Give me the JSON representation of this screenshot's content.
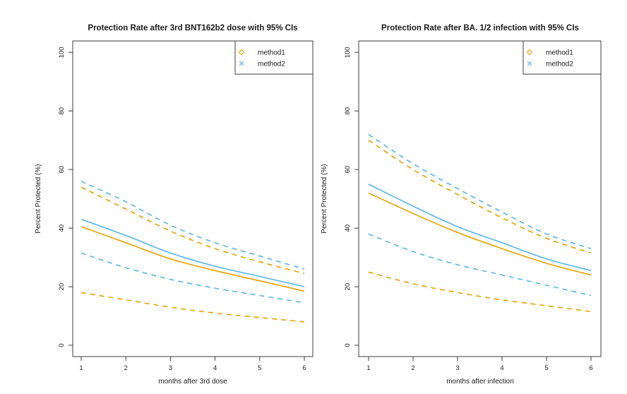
{
  "figure": {
    "background": "#ffffff",
    "accent_orange": "#E69F00",
    "accent_blue": "#56B4E9"
  },
  "chart_data": [
    {
      "type": "line",
      "title": "Protection Rate after 3rd BNT162b2 dose with 95% CIs",
      "xlabel": "months after 3rd dose",
      "ylabel": "Percent Protected (%)",
      "x": [
        1,
        2,
        3,
        4,
        5,
        6
      ],
      "xticks": [
        "1",
        "2",
        "3",
        "4",
        "5",
        "6"
      ],
      "yticks": [
        "0",
        "20",
        "40",
        "60",
        "80",
        "100"
      ],
      "ytick_values": [
        0,
        20,
        40,
        60,
        80,
        100
      ],
      "ylim": [
        0,
        100
      ],
      "grid": false,
      "legend": {
        "position": "topright",
        "entries": [
          {
            "label": "method1",
            "marker": "diamond",
            "color": "#E69F00"
          },
          {
            "label": "method2",
            "marker": "x",
            "color": "#56B4E9"
          }
        ]
      },
      "series": [
        {
          "name": "method1",
          "role": "ci-upper",
          "color": "#E69F00",
          "linestyle": "dashed",
          "values": [
            54,
            46.5,
            39,
            33,
            28.5,
            24.5
          ]
        },
        {
          "name": "method1",
          "role": "ci-lower",
          "color": "#E69F00",
          "linestyle": "dashed",
          "values": [
            18,
            15.5,
            13,
            11,
            9.5,
            8
          ]
        },
        {
          "name": "method2",
          "role": "ci-upper",
          "color": "#56B4E9",
          "linestyle": "dashed",
          "values": [
            56,
            49,
            41,
            35,
            30.5,
            26
          ]
        },
        {
          "name": "method2",
          "role": "ci-lower",
          "color": "#56B4E9",
          "linestyle": "dashed",
          "values": [
            31.5,
            26.5,
            22.5,
            19.5,
            17,
            14.5
          ]
        },
        {
          "name": "method1",
          "role": "estimate",
          "color": "#E69F00",
          "linestyle": "solid",
          "values": [
            40.5,
            35,
            29.5,
            25.5,
            22,
            18.5
          ]
        },
        {
          "name": "method2",
          "role": "estimate",
          "color": "#56B4E9",
          "linestyle": "solid",
          "values": [
            43,
            37.5,
            31.5,
            27,
            23.5,
            20
          ]
        }
      ]
    },
    {
      "type": "line",
      "title": "Protection Rate after BA. 1/2 infection with 95% CIs",
      "xlabel": "months after infection",
      "ylabel": "Percent Protected (%)",
      "x": [
        1,
        2,
        3,
        4,
        5,
        6
      ],
      "xticks": [
        "1",
        "2",
        "3",
        "4",
        "5",
        "6"
      ],
      "yticks": [
        "0",
        "20",
        "40",
        "60",
        "80",
        "100"
      ],
      "ytick_values": [
        0,
        20,
        40,
        60,
        80,
        100
      ],
      "ylim": [
        0,
        100
      ],
      "grid": false,
      "legend": {
        "position": "topright",
        "entries": [
          {
            "label": "method1",
            "marker": "diamond",
            "color": "#E69F00"
          },
          {
            "label": "method2",
            "marker": "x",
            "color": "#56B4E9"
          }
        ]
      },
      "series": [
        {
          "name": "method1",
          "role": "ci-upper",
          "color": "#E69F00",
          "linestyle": "dashed",
          "values": [
            70,
            60,
            51.5,
            43.5,
            36.5,
            31.5
          ]
        },
        {
          "name": "method1",
          "role": "ci-lower",
          "color": "#E69F00",
          "linestyle": "dashed",
          "values": [
            25,
            21,
            18,
            15.5,
            13.5,
            11.5
          ]
        },
        {
          "name": "method2",
          "role": "ci-upper",
          "color": "#56B4E9",
          "linestyle": "dashed",
          "values": [
            72,
            62,
            53.5,
            45.5,
            38,
            33
          ]
        },
        {
          "name": "method2",
          "role": "ci-lower",
          "color": "#56B4E9",
          "linestyle": "dashed",
          "values": [
            38,
            32,
            27.5,
            24,
            20.5,
            17
          ]
        },
        {
          "name": "method1",
          "role": "estimate",
          "color": "#E69F00",
          "linestyle": "solid",
          "values": [
            52,
            45,
            38.5,
            33,
            28,
            24
          ]
        },
        {
          "name": "method2",
          "role": "estimate",
          "color": "#56B4E9",
          "linestyle": "solid",
          "values": [
            55,
            47.5,
            40.5,
            35,
            29.5,
            25.5
          ]
        }
      ]
    }
  ]
}
